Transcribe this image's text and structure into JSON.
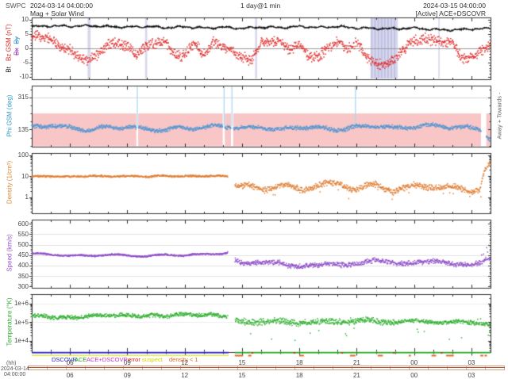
{
  "header": {
    "app": "SWPC",
    "start_datetime": "2024-03-14 04:00:00",
    "plot_type": "Mag + Solar Wind",
    "resolution": "1 day@1 min",
    "end_datetime": "2024-03-15 04:00:00",
    "status": "[Active] ACE+DSCOVR"
  },
  "footer": {
    "x_unit": "(hh)",
    "start_date": "2024-03-14",
    "start_time": "04:00:00"
  },
  "legend": [
    {
      "label": "DSCOVR",
      "color": "#2222cc"
    },
    {
      "label": "ACE",
      "color": "#22aa22"
    },
    {
      "label": "ACE+DSCOVR",
      "color": "#cc33cc"
    },
    {
      "label": "error",
      "color": "#dd2222"
    },
    {
      "label": "suspect",
      "color": "#d6d600"
    },
    {
      "label": "density < 1",
      "color": "#e06a28"
    }
  ],
  "status_bar": {
    "segments": [
      {
        "name": "DSCOVR",
        "color": "#2222cc",
        "from_hour": 0,
        "to_hour": 10.3
      },
      {
        "name": "ACE",
        "color": "#22aa22",
        "from_hour": 10.62,
        "to_hour": 24
      }
    ],
    "suspect_line": {
      "color": "#e8e832",
      "from_hour": 0,
      "to_hour": 10.3
    },
    "density_marks_color": "#e06a28",
    "error_mark_color": "#dd2222",
    "error_mark_hours": [
      11.5,
      13.7,
      16.2,
      18.9,
      21.4
    ]
  },
  "chart_data": {
    "type": "scatter",
    "title": "Mag + Solar Wind",
    "x_axis": {
      "label": "(hh)",
      "start": "2024-03-14 04:00",
      "end": "2024-03-15 04:00",
      "tick_hours": [
        2,
        5,
        8,
        11,
        14,
        17,
        20,
        23
      ],
      "tick_labels": [
        "06",
        "09",
        "12",
        "15",
        "18",
        "21",
        "00",
        "03"
      ],
      "minor_tick_every_hours": 1
    },
    "data_gap_hours": [
      10.25,
      10.62
    ],
    "panels": [
      {
        "id": "mag",
        "ylabel_parts": {
          "bt": "Bt",
          "bz": "Bz GSM (nT)",
          "struck": [
            "Bx",
            "By"
          ]
        },
        "ylim": [
          -10.8,
          10.8
        ],
        "yticks": [
          10,
          5,
          0,
          -5,
          -10
        ],
        "grid_values": [
          0
        ],
        "band_color": "rgba(168,168,216,0.45)",
        "shaded_bands_hours": [
          [
            2.92,
            3.08
          ],
          [
            5.93,
            6.04
          ],
          [
            11.68,
            11.79
          ],
          [
            17.72,
            19.15
          ],
          [
            21.27,
            21.34
          ]
        ],
        "series": [
          {
            "name": "Bt",
            "color": "#111111",
            "style": "line",
            "hours": [
              0,
              1,
              2,
              3,
              4,
              5,
              6,
              7,
              8,
              9,
              10,
              11,
              12,
              13,
              14,
              15,
              16,
              17,
              18,
              19,
              20,
              21,
              22,
              23,
              24
            ],
            "values": [
              7.6,
              7.8,
              7.7,
              7.9,
              7.6,
              7.4,
              7.6,
              7.2,
              7.5,
              7.1,
              7.3,
              7.0,
              7.4,
              7.2,
              7.6,
              7.3,
              7.6,
              7.1,
              6.9,
              6.8,
              7.1,
              6.6,
              6.4,
              6.7,
              6.9
            ]
          },
          {
            "name": "Bz",
            "color": "#e03030",
            "style": "scatter",
            "hours": [
              0,
              0.5,
              1,
              1.5,
              2,
              2.5,
              3,
              3.5,
              4,
              4.5,
              5,
              5.5,
              6,
              6.5,
              7,
              7.5,
              8,
              8.5,
              9,
              9.5,
              10,
              10.5,
              11,
              11.5,
              12,
              12.5,
              13,
              13.5,
              14,
              14.5,
              15,
              15.5,
              16,
              16.5,
              17,
              17.5,
              18,
              18.5,
              19,
              19.5,
              20,
              20.5,
              21,
              21.5,
              22,
              22.5,
              23,
              23.5,
              24
            ],
            "values": [
              3.5,
              3.2,
              3.0,
              1.5,
              0.0,
              -4.0,
              -5.5,
              -2.0,
              2.0,
              2.5,
              1.0,
              -3.5,
              0.5,
              2.0,
              3.0,
              -2.0,
              -3.0,
              1.0,
              -2.5,
              3.0,
              1.5,
              -1.0,
              -3.5,
              -5.0,
              2.5,
              3.5,
              3.0,
              -1.0,
              0.5,
              -3.0,
              -2.0,
              1.0,
              2.0,
              -1.0,
              1.5,
              -2.5,
              -4.5,
              -5.0,
              -4.5,
              -1.0,
              2.5,
              4.0,
              3.5,
              2.0,
              1.0,
              -4.0,
              -3.0,
              0.0,
              1.5
            ]
          }
        ]
      },
      {
        "id": "phi",
        "ylabel": "Phi GSM (deg)",
        "ylabel_color": "#3399cc",
        "right_label": "Away  +  Towards  -",
        "ylim": [
          40,
          380
        ],
        "yticks": [
          315,
          135
        ],
        "sector_shade": {
          "from": 40,
          "to": 225,
          "color": "#f8c6c6"
        },
        "spike_hours": [
          5.52,
          10.06,
          10.47,
          16.93
        ],
        "spike_color": "#a9d9f2",
        "gaps_hours": [
          [
            5.47,
            5.57
          ],
          [
            9.99,
            10.1
          ],
          [
            10.42,
            10.54
          ],
          [
            23.5,
            23.78
          ]
        ],
        "series": [
          {
            "name": "Phi",
            "color": "#5596d2",
            "style": "scatter",
            "hours": [
              0,
              1,
              2,
              3,
              4,
              5,
              6,
              7,
              8,
              9,
              10,
              11,
              12,
              13,
              14,
              15,
              16,
              17,
              18,
              19,
              20,
              21,
              22,
              23,
              23.4,
              24
            ],
            "values": [
              150,
              158,
              145,
              132,
              150,
              148,
              138,
              134,
              148,
              144,
              158,
              142,
              150,
              132,
              152,
              144,
              134,
              148,
              158,
              142,
              152,
              158,
              150,
              144,
              140,
              80
            ]
          }
        ]
      },
      {
        "id": "density",
        "ylabel": "Density (1/cm³)",
        "ylabel_color": "#dd8833",
        "scale": "log",
        "ylim": [
          0.18,
          130
        ],
        "yticks": [
          100,
          10,
          1
        ],
        "series": [
          {
            "name": "Density",
            "color": "#e07f35",
            "style": "scatter",
            "hours": [
              0,
              1,
              2,
              3,
              4,
              5,
              6,
              7,
              8,
              9,
              10,
              10.25,
              10.62,
              11,
              12,
              13,
              14,
              15,
              16,
              17,
              18,
              19,
              20,
              21,
              22,
              23,
              23.5,
              24
            ],
            "values": [
              9.5,
              9.8,
              9.2,
              10.2,
              9.6,
              10.0,
              9.4,
              10.3,
              9.8,
              10.1,
              9.9,
              9.5,
              3.4,
              3.0,
              2.6,
              3.4,
              2.4,
              3.6,
              4.2,
              2.6,
              3.4,
              2.2,
              3.0,
              3.4,
              2.6,
              2.2,
              3.0,
              40
            ]
          }
        ]
      },
      {
        "id": "speed",
        "ylabel": "Speed (km/s)",
        "ylabel_color": "#9955cc",
        "ylim": [
          295,
          620
        ],
        "yticks": [
          600,
          550,
          500,
          450,
          400,
          350,
          300
        ],
        "grid_values": [
          550,
          500,
          450,
          400,
          350
        ],
        "series": [
          {
            "name": "Speed",
            "color": "#9050c8",
            "style": "scatter",
            "hours": [
              0,
              1,
              2,
              3,
              4,
              5,
              6,
              7,
              8,
              9,
              10,
              10.25,
              10.62,
              11,
              12,
              13,
              14,
              15,
              16,
              17,
              18,
              19,
              20,
              21,
              22,
              23,
              23.5,
              24
            ],
            "values": [
              458,
              452,
              448,
              446,
              452,
              448,
              444,
              452,
              448,
              455,
              458,
              460,
              432,
              418,
              408,
              412,
              400,
              396,
              405,
              415,
              420,
              412,
              418,
              414,
              408,
              412,
              415,
              430
            ]
          }
        ]
      },
      {
        "id": "temperature",
        "ylabel": "Temperature (°K)",
        "ylabel_color": "#33aa33",
        "scale": "log",
        "ylim": [
          2800,
          3300000
        ],
        "yticks": [
          1000000,
          100000,
          10000
        ],
        "ytick_labels": [
          "1e+6",
          "1e+5",
          "1e+4"
        ],
        "grid_values": [
          1000000,
          100000
        ],
        "series": [
          {
            "name": "Temperature",
            "color": "#33b033",
            "style": "scatter",
            "hours": [
              0,
              1,
              2,
              3,
              4,
              5,
              6,
              7,
              8,
              9,
              10,
              10.25,
              10.62,
              11,
              12,
              13,
              14,
              15,
              16,
              17,
              18,
              19,
              20,
              21,
              22,
              23,
              23.5,
              24
            ],
            "values": [
              220000,
              190000,
              170000,
              210000,
              240000,
              230000,
              210000,
              230000,
              260000,
              240000,
              230000,
              225000,
              135000,
              120000,
              100000,
              110000,
              100000,
              95000,
              110000,
              120000,
              110000,
              105000,
              110000,
              105000,
              100000,
              95000,
              90000,
              80000
            ]
          }
        ]
      }
    ]
  }
}
